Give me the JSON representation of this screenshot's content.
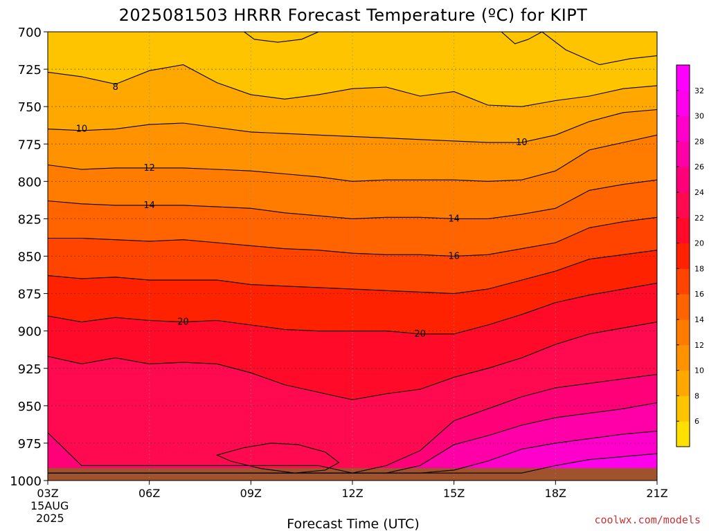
{
  "chart_data": {
    "type": "filled-contour",
    "title": "2025081503 HRRR Forecast Temperature (ºC) for KIPT",
    "xlabel": "Forecast Time (UTC)",
    "ylabel": "",
    "x_ticks": [
      "03Z",
      "06Z",
      "09Z",
      "12Z",
      "15Z",
      "18Z",
      "21Z"
    ],
    "x_first_date": [
      "15AUG",
      "2025"
    ],
    "y_ticks": [
      700,
      725,
      750,
      775,
      800,
      825,
      850,
      875,
      900,
      925,
      950,
      975,
      1000
    ],
    "ylim": [
      1000,
      700
    ],
    "x_hours": [
      3,
      4,
      5,
      6,
      7,
      8,
      9,
      10,
      11,
      12,
      13,
      14,
      15,
      16,
      17,
      18,
      19,
      20,
      21
    ],
    "contour_levels": [
      8,
      10,
      12,
      14,
      16,
      18,
      20,
      22,
      24,
      26,
      28,
      30
    ],
    "contour_pressures": {
      "8": [
        727,
        730,
        735,
        726,
        722,
        734,
        742,
        745,
        742,
        738,
        737,
        743,
        740,
        749,
        750,
        746,
        743,
        738,
        736
      ],
      "10": [
        765,
        766,
        765,
        762,
        761,
        764,
        767,
        768,
        769,
        770,
        771,
        772,
        773,
        774,
        774,
        769,
        760,
        754,
        752
      ],
      "12": [
        789,
        792,
        791,
        791,
        791,
        792,
        793,
        795,
        797,
        800,
        799,
        799,
        799,
        800,
        799,
        793,
        779,
        774,
        769
      ],
      "14": [
        813,
        815,
        816,
        816,
        816,
        817,
        818,
        821,
        823,
        825,
        824,
        824,
        825,
        825,
        822,
        818,
        806,
        802,
        799
      ],
      "16": [
        838,
        838,
        839,
        840,
        839,
        841,
        843,
        845,
        846,
        848,
        849,
        849,
        850,
        849,
        845,
        841,
        831,
        827,
        824
      ],
      "18": [
        863,
        865,
        864,
        866,
        866,
        866,
        869,
        870,
        871,
        872,
        873,
        874,
        875,
        872,
        866,
        860,
        852,
        849,
        846
      ],
      "20": [
        890,
        894,
        891,
        893,
        894,
        893,
        896,
        899,
        900,
        900,
        900,
        902,
        902,
        896,
        889,
        881,
        876,
        872,
        868
      ],
      "22": [
        917,
        922,
        918,
        922,
        921,
        922,
        928,
        936,
        941,
        946,
        942,
        939,
        931,
        925,
        918,
        909,
        902,
        898,
        894
      ],
      "24": [
        968,
        990,
        990,
        990,
        990,
        990,
        990,
        990,
        990,
        995,
        990,
        980,
        960,
        952,
        944,
        938,
        935,
        932,
        929
      ],
      "26": [
        995,
        995,
        995,
        995,
        995,
        995,
        995,
        995,
        995,
        995,
        995,
        990,
        976,
        970,
        963,
        958,
        955,
        952,
        948
      ],
      "28": [
        995,
        995,
        995,
        995,
        995,
        995,
        995,
        995,
        995,
        995,
        995,
        995,
        993,
        987,
        979,
        975,
        972,
        969,
        967
      ],
      "30": [
        995,
        995,
        995,
        995,
        995,
        995,
        995,
        995,
        995,
        995,
        995,
        995,
        995,
        995,
        995,
        990,
        986,
        984,
        982
      ]
    },
    "closed_contours": [
      {
        "level": 22,
        "points": [
          [
            8.0,
            983
          ],
          [
            8.8,
            978
          ],
          [
            9.6,
            975
          ],
          [
            10.4,
            976
          ],
          [
            11.2,
            981
          ],
          [
            11.6,
            988
          ],
          [
            11.2,
            993
          ],
          [
            10.3,
            995
          ],
          [
            9.3,
            992
          ],
          [
            8.4,
            987
          ]
        ]
      },
      {
        "level": 6,
        "points": [
          [
            8.8,
            700
          ],
          [
            9.1,
            705
          ],
          [
            9.8,
            707
          ],
          [
            10.5,
            705
          ],
          [
            11.0,
            700
          ]
        ]
      },
      {
        "level": 6,
        "points": [
          [
            16.4,
            700
          ],
          [
            16.8,
            708
          ],
          [
            17.2,
            705
          ],
          [
            17.6,
            700
          ]
        ]
      },
      {
        "level": 6,
        "points": [
          [
            17.6,
            700
          ],
          [
            18.3,
            712
          ],
          [
            19.3,
            722
          ],
          [
            20.2,
            718
          ],
          [
            21.0,
            716
          ],
          [
            21.0,
            700
          ]
        ]
      }
    ],
    "contour_labels": [
      {
        "text": "8",
        "hour": 5.0,
        "pressure": 737
      },
      {
        "text": "10",
        "hour": 4.0,
        "pressure": 765
      },
      {
        "text": "12",
        "hour": 6.0,
        "pressure": 791
      },
      {
        "text": "14",
        "hour": 6.0,
        "pressure": 816
      },
      {
        "text": "14",
        "hour": 15.0,
        "pressure": 825
      },
      {
        "text": "16",
        "hour": 15.0,
        "pressure": 850
      },
      {
        "text": "20",
        "hour": 7.0,
        "pressure": 894
      },
      {
        "text": "20",
        "hour": 14.0,
        "pressure": 902
      },
      {
        "text": "10",
        "hour": 17.0,
        "pressure": 774
      }
    ],
    "colorbar_ticks": [
      6,
      8,
      10,
      12,
      14,
      16,
      18,
      20,
      22,
      24,
      26,
      28,
      30,
      32
    ],
    "colorbar_colors": [
      "#ffe000",
      "#ffc400",
      "#ffa800",
      "#ff9200",
      "#ff7c00",
      "#ff6400",
      "#ff4400",
      "#ff2200",
      "#ff0a28",
      "#ff0a50",
      "#ff0078",
      "#ff00a8",
      "#ff00cc",
      "#ff00ec",
      "#ff00ff"
    ],
    "grid": true,
    "legend": "right"
  },
  "credit": "coolwx.com/models"
}
